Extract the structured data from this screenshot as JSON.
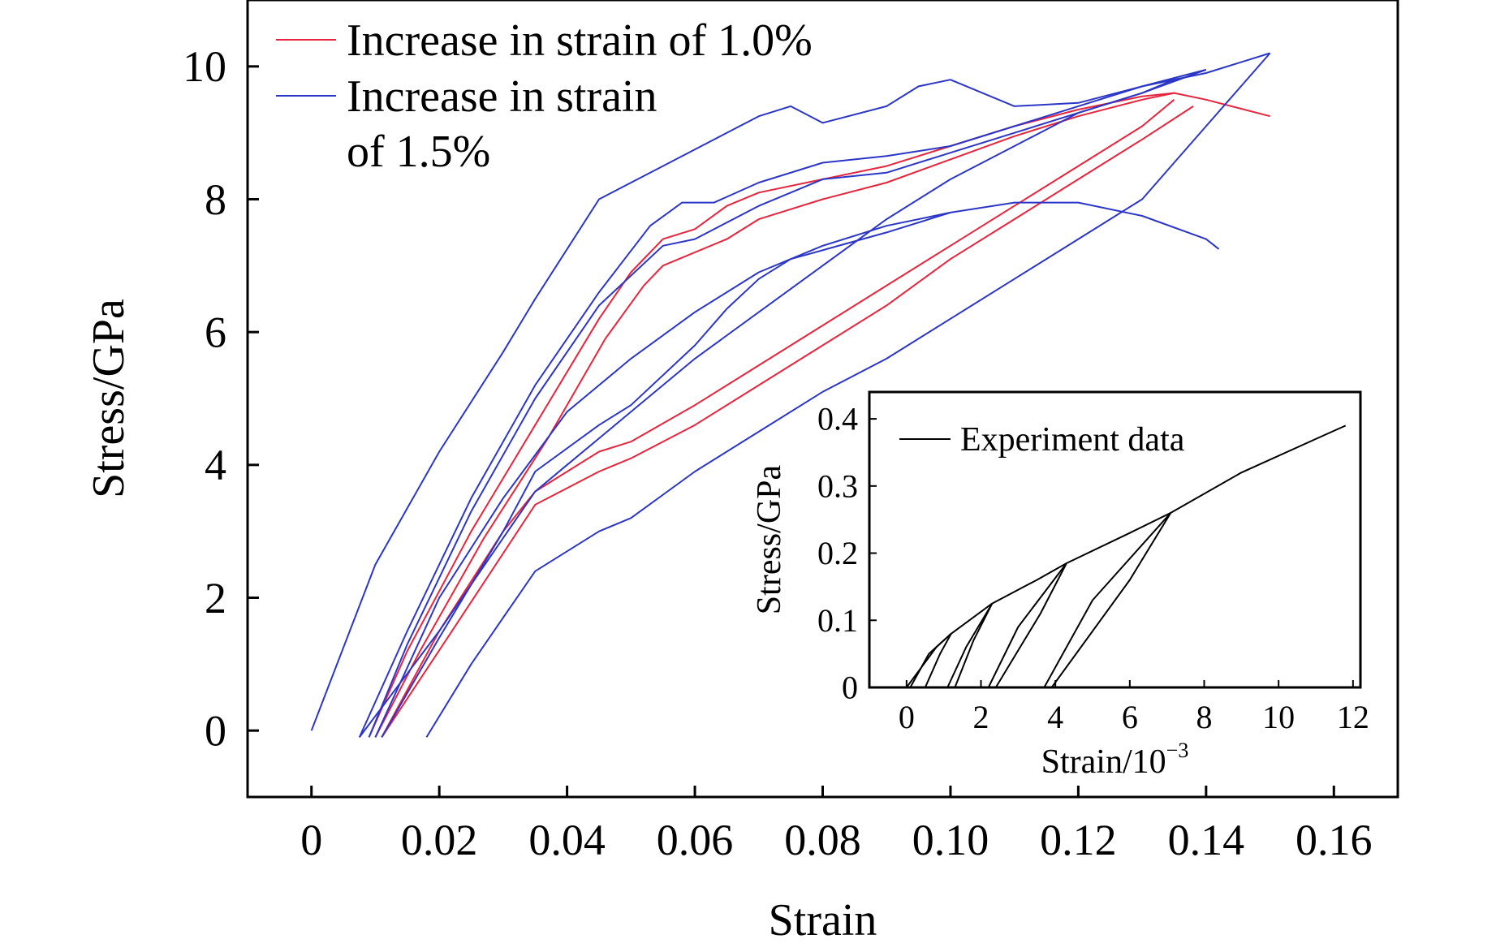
{
  "chart_data": [
    {
      "type": "line",
      "xlabel": "Strain",
      "ylabel": "Stress/GPa",
      "xlim": [
        -0.01,
        0.17
      ],
      "ylim": [
        -1,
        11
      ],
      "x_ticks": [
        0,
        0.02,
        0.04,
        0.06,
        0.08,
        0.1,
        0.12,
        0.14,
        0.16
      ],
      "x_tick_labels": [
        "0",
        "0.02",
        "0.04",
        "0.06",
        "0.08",
        "0.10",
        "0.12",
        "0.14",
        "0.16"
      ],
      "y_ticks": [
        0,
        2,
        4,
        6,
        8,
        10
      ],
      "y_tick_labels": [
        "0",
        "2",
        "4",
        "6",
        "8",
        "10"
      ],
      "legend_position": "top-left",
      "series": [
        {
          "name": "Increase in strain of 1.0%",
          "color": "#e8253d",
          "segments": [
            [
              [
                0.009,
                -0.1
              ],
              [
                0.015,
                1.2
              ],
              [
                0.025,
                3.0
              ],
              [
                0.035,
                4.6
              ],
              [
                0.045,
                6.2
              ],
              [
                0.05,
                6.9
              ],
              [
                0.055,
                7.4
              ],
              [
                0.06,
                7.55
              ],
              [
                0.065,
                7.9
              ],
              [
                0.07,
                8.1
              ],
              [
                0.08,
                8.3
              ],
              [
                0.09,
                8.5
              ],
              [
                0.1,
                8.8
              ],
              [
                0.11,
                9.1
              ],
              [
                0.12,
                9.35
              ],
              [
                0.13,
                9.55
              ],
              [
                0.135,
                9.6
              ],
              [
                0.14,
                9.5
              ],
              [
                0.15,
                9.25
              ]
            ],
            [
              [
                0.011,
                -0.1
              ],
              [
                0.02,
                1.5
              ],
              [
                0.03,
                3.0
              ],
              [
                0.035,
                3.6
              ],
              [
                0.045,
                4.2
              ],
              [
                0.05,
                4.35
              ],
              [
                0.06,
                4.9
              ],
              [
                0.07,
                5.5
              ],
              [
                0.08,
                6.1
              ],
              [
                0.09,
                6.7
              ],
              [
                0.1,
                7.3
              ],
              [
                0.11,
                7.9
              ],
              [
                0.12,
                8.5
              ],
              [
                0.13,
                9.1
              ],
              [
                0.135,
                9.5
              ]
            ],
            [
              [
                0.01,
                -0.1
              ],
              [
                0.017,
                1.2
              ],
              [
                0.027,
                2.9
              ],
              [
                0.037,
                4.4
              ],
              [
                0.046,
                5.9
              ],
              [
                0.052,
                6.7
              ],
              [
                0.055,
                7.0
              ],
              [
                0.065,
                7.4
              ],
              [
                0.07,
                7.7
              ],
              [
                0.08,
                8.0
              ],
              [
                0.09,
                8.25
              ],
              [
                0.1,
                8.6
              ],
              [
                0.11,
                8.95
              ],
              [
                0.12,
                9.25
              ],
              [
                0.13,
                9.5
              ],
              [
                0.135,
                9.6
              ]
            ],
            [
              [
                0.011,
                -0.1
              ],
              [
                0.022,
                1.5
              ],
              [
                0.035,
                3.4
              ],
              [
                0.045,
                3.9
              ],
              [
                0.05,
                4.1
              ],
              [
                0.06,
                4.6
              ],
              [
                0.07,
                5.2
              ],
              [
                0.08,
                5.8
              ],
              [
                0.09,
                6.4
              ],
              [
                0.1,
                7.1
              ],
              [
                0.11,
                7.7
              ],
              [
                0.12,
                8.3
              ],
              [
                0.13,
                8.9
              ],
              [
                0.138,
                9.4
              ]
            ]
          ]
        },
        {
          "name": "Increase in strain of 1.5%",
          "color": "#2b36c8",
          "segments": [
            [
              [
                0,
                0
              ],
              [
                0.01,
                2.5
              ],
              [
                0.02,
                4.2
              ],
              [
                0.03,
                5.7
              ],
              [
                0.035,
                6.5
              ],
              [
                0.045,
                8.0
              ],
              [
                0.055,
                8.5
              ],
              [
                0.07,
                9.25
              ],
              [
                0.075,
                9.4
              ],
              [
                0.08,
                9.15
              ],
              [
                0.09,
                9.4
              ],
              [
                0.095,
                9.7
              ],
              [
                0.1,
                9.8
              ],
              [
                0.11,
                9.4
              ],
              [
                0.12,
                9.45
              ],
              [
                0.13,
                9.7
              ],
              [
                0.14,
                9.9
              ],
              [
                0.15,
                10.2
              ]
            ],
            [
              [
                0.0075,
                -0.1
              ],
              [
                0.015,
                1.5
              ],
              [
                0.025,
                3.5
              ],
              [
                0.035,
                5.2
              ],
              [
                0.045,
                6.6
              ],
              [
                0.053,
                7.6
              ],
              [
                0.058,
                7.95
              ],
              [
                0.063,
                7.95
              ],
              [
                0.07,
                8.25
              ],
              [
                0.08,
                8.55
              ],
              [
                0.09,
                8.65
              ],
              [
                0.1,
                8.8
              ],
              [
                0.11,
                9.1
              ],
              [
                0.12,
                9.4
              ],
              [
                0.13,
                9.7
              ],
              [
                0.14,
                9.95
              ]
            ],
            [
              [
                0.009,
                -0.1
              ],
              [
                0.015,
                1.3
              ],
              [
                0.025,
                3.3
              ],
              [
                0.035,
                5.0
              ],
              [
                0.045,
                6.4
              ],
              [
                0.055,
                7.3
              ],
              [
                0.06,
                7.4
              ],
              [
                0.07,
                7.9
              ],
              [
                0.08,
                8.3
              ],
              [
                0.09,
                8.4
              ],
              [
                0.1,
                8.7
              ],
              [
                0.11,
                9.0
              ],
              [
                0.12,
                9.3
              ],
              [
                0.13,
                9.6
              ],
              [
                0.135,
                9.8
              ]
            ],
            [
              [
                0.0075,
                -0.1
              ],
              [
                0.02,
                1.5
              ],
              [
                0.03,
                2.9
              ],
              [
                0.035,
                3.6
              ],
              [
                0.04,
                4.0
              ],
              [
                0.045,
                4.4
              ],
              [
                0.05,
                4.8
              ],
              [
                0.06,
                5.6
              ],
              [
                0.07,
                6.3
              ],
              [
                0.08,
                7.0
              ],
              [
                0.09,
                7.7
              ],
              [
                0.1,
                8.3
              ],
              [
                0.11,
                8.8
              ],
              [
                0.12,
                9.3
              ],
              [
                0.13,
                9.6
              ],
              [
                0.14,
                9.95
              ]
            ],
            [
              [
                0.011,
                -0.1
              ],
              [
                0.02,
                1.4
              ],
              [
                0.03,
                3.0
              ],
              [
                0.035,
                3.9
              ],
              [
                0.045,
                4.6
              ],
              [
                0.05,
                4.9
              ],
              [
                0.06,
                5.8
              ],
              [
                0.065,
                6.35
              ],
              [
                0.07,
                6.8
              ],
              [
                0.075,
                7.1
              ],
              [
                0.09,
                7.5
              ],
              [
                0.1,
                7.8
              ],
              [
                0.11,
                7.95
              ],
              [
                0.12,
                7.95
              ],
              [
                0.13,
                7.75
              ],
              [
                0.14,
                7.4
              ],
              [
                0.142,
                7.25
              ]
            ],
            [
              [
                0.018,
                -0.1
              ],
              [
                0.025,
                1.0
              ],
              [
                0.03,
                1.7
              ],
              [
                0.035,
                2.4
              ],
              [
                0.045,
                3.0
              ],
              [
                0.05,
                3.2
              ],
              [
                0.06,
                3.9
              ],
              [
                0.07,
                4.5
              ],
              [
                0.08,
                5.1
              ],
              [
                0.09,
                5.6
              ],
              [
                0.1,
                6.2
              ],
              [
                0.11,
                6.8
              ],
              [
                0.12,
                7.4
              ],
              [
                0.13,
                8.0
              ],
              [
                0.14,
                9.1
              ],
              [
                0.15,
                10.2
              ]
            ],
            [
              [
                0.01,
                -0.1
              ],
              [
                0.02,
                2.0
              ],
              [
                0.03,
                3.5
              ],
              [
                0.04,
                4.8
              ],
              [
                0.05,
                5.6
              ],
              [
                0.06,
                6.3
              ],
              [
                0.07,
                6.9
              ],
              [
                0.08,
                7.3
              ],
              [
                0.09,
                7.6
              ],
              [
                0.1,
                7.8
              ]
            ]
          ]
        }
      ]
    },
    {
      "type": "line",
      "xlabel": "Strain/10",
      "xlabel_superscript": "−3",
      "ylabel": "Stress/GPa",
      "xlim": [
        -1,
        12.2
      ],
      "ylim": [
        0,
        0.44
      ],
      "x_ticks": [
        0,
        2,
        4,
        6,
        8,
        10,
        12
      ],
      "x_tick_labels": [
        "0",
        "2",
        "4",
        "6",
        "8",
        "10",
        "12"
      ],
      "y_ticks": [
        0,
        0.1,
        0.2,
        0.3,
        0.4
      ],
      "y_tick_labels": [
        "0",
        "0.1",
        "0.2",
        "0.3",
        "0.4"
      ],
      "legend_position": "top-left",
      "series": [
        {
          "name": "Experiment data",
          "color": "#000000",
          "segments": [
            [
              [
                0,
                0
              ],
              [
                0.4,
                0.03
              ],
              [
                0.8,
                0.06
              ],
              [
                1.2,
                0.08
              ],
              [
                2.3,
                0.125
              ],
              [
                3.5,
                0.16
              ],
              [
                4.3,
                0.185
              ],
              [
                6,
                0.23
              ],
              [
                7.1,
                0.26
              ],
              [
                9,
                0.32
              ],
              [
                11,
                0.37
              ],
              [
                11.8,
                0.39
              ]
            ],
            [
              [
                0.1,
                0
              ],
              [
                0.6,
                0.05
              ],
              [
                1.2,
                0.08
              ]
            ],
            [
              [
                0.5,
                0
              ],
              [
                0.9,
                0.05
              ],
              [
                1.2,
                0.08
              ]
            ],
            [
              [
                1.1,
                0
              ],
              [
                1.6,
                0.06
              ],
              [
                2.3,
                0.125
              ]
            ],
            [
              [
                1.3,
                0
              ],
              [
                1.8,
                0.07
              ],
              [
                2.3,
                0.125
              ]
            ],
            [
              [
                2.2,
                0
              ],
              [
                3.0,
                0.09
              ],
              [
                4.3,
                0.185
              ]
            ],
            [
              [
                2.4,
                0
              ],
              [
                3.6,
                0.11
              ],
              [
                4.3,
                0.185
              ]
            ],
            [
              [
                3.7,
                0
              ],
              [
                5.0,
                0.13
              ],
              [
                7.1,
                0.26
              ]
            ],
            [
              [
                3.9,
                0
              ],
              [
                6.0,
                0.16
              ],
              [
                7.1,
                0.26
              ]
            ]
          ]
        }
      ]
    }
  ]
}
